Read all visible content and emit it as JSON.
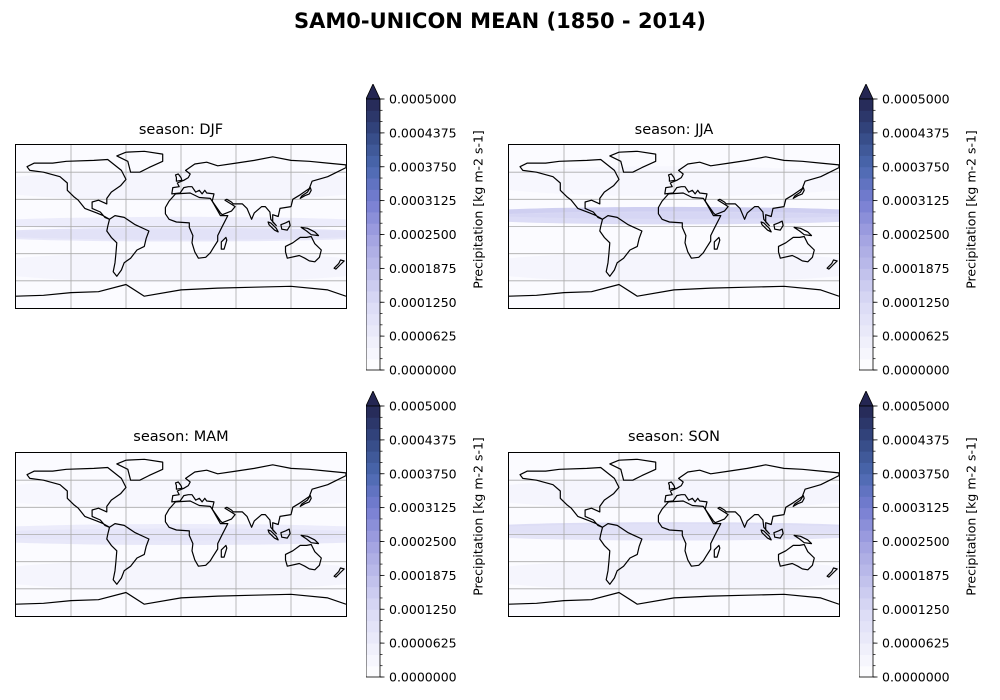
{
  "title": "SAM0-UNICON MEAN (1850 - 2014)",
  "colorbar": {
    "label": "Precipitation [kg m-2 s-1]",
    "ticks": [
      "0.0000000",
      "0.0000625",
      "0.0001250",
      "0.0001875",
      "0.0002500",
      "0.0003125",
      "0.0003750",
      "0.0004375",
      "0.0005000"
    ],
    "min": 0.0,
    "max": 0.0005,
    "levels": 24,
    "extend": "max",
    "colormap_low": "#ffffff",
    "colormap_mid": "#7b7fd6",
    "colormap_high": "#2a2a5a"
  },
  "chart_data": [
    {
      "type": "heatmap",
      "title": "season: DJF",
      "variable": "Precipitation [kg m-2 s-1]",
      "vmin": 0.0,
      "vmax": 0.0005,
      "projection": "global map with coastlines, country borders and gridlines",
      "bands": [
        {
          "region": "ITCZ / Pacific (south of equator)",
          "lat": -8,
          "value": 0.00012
        },
        {
          "region": "Equatorial Pacific",
          "lat": 4,
          "value": 8e-05
        },
        {
          "region": "Maritime Continent / Indian Ocean",
          "lat": -10,
          "value": 0.0001
        },
        {
          "region": "Southern midlatitudes",
          "lat": -45,
          "value": 4e-05
        },
        {
          "region": "Northern midlatitudes",
          "lat": 45,
          "value": 4e-05
        }
      ]
    },
    {
      "type": "heatmap",
      "title": "season: JJA",
      "variable": "Precipitation [kg m-2 s-1]",
      "vmin": 0.0,
      "vmax": 0.0005,
      "projection": "global map with coastlines, country borders and gridlines",
      "bands": [
        {
          "region": "ITCZ Pacific (north of equator)",
          "lat": 9,
          "value": 0.00014
        },
        {
          "region": "South/Southeast Asian monsoon",
          "lat": 15,
          "value": 0.00018
        },
        {
          "region": "West Pacific",
          "lat": 10,
          "value": 0.00012
        },
        {
          "region": "Southern midlatitudes",
          "lat": -45,
          "value": 4e-05
        },
        {
          "region": "Northern midlatitudes",
          "lat": 50,
          "value": 3e-05
        }
      ]
    },
    {
      "type": "heatmap",
      "title": "season: MAM",
      "variable": "Precipitation [kg m-2 s-1]",
      "vmin": 0.0,
      "vmax": 0.0005,
      "projection": "global map with coastlines, country borders and gridlines",
      "bands": [
        {
          "region": "ITCZ Pacific (double band)",
          "lat": -5,
          "value": 0.0001
        },
        {
          "region": "Equatorial Pacific",
          "lat": 5,
          "value": 8e-05
        },
        {
          "region": "Maritime Continent",
          "lat": 0,
          "value": 9e-05
        },
        {
          "region": "Southern midlatitudes",
          "lat": -45,
          "value": 4e-05
        },
        {
          "region": "Northern midlatitudes",
          "lat": 45,
          "value": 3e-05
        }
      ]
    },
    {
      "type": "heatmap",
      "title": "season: SON",
      "variable": "Precipitation [kg m-2 s-1]",
      "vmin": 0.0,
      "vmax": 0.0005,
      "projection": "global map with coastlines, country borders and gridlines",
      "bands": [
        {
          "region": "ITCZ Pacific (north of equator)",
          "lat": 7,
          "value": 0.00014
        },
        {
          "region": "Maritime Continent / Indian Ocean",
          "lat": 0,
          "value": 0.00011
        },
        {
          "region": "West Pacific",
          "lat": 5,
          "value": 0.0001
        },
        {
          "region": "Southern midlatitudes",
          "lat": -45,
          "value": 4e-05
        },
        {
          "region": "Northern midlatitudes",
          "lat": 45,
          "value": 4e-05
        }
      ]
    }
  ]
}
